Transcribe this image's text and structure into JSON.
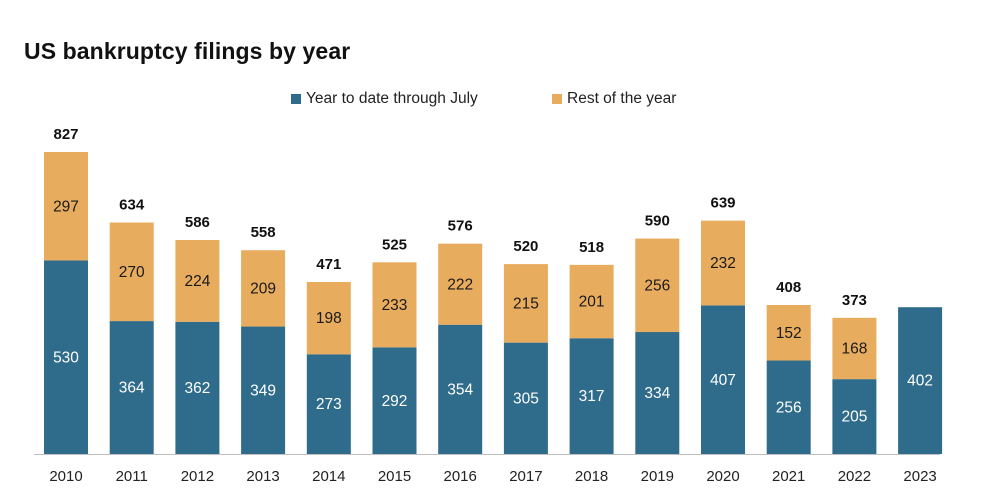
{
  "chart_data": {
    "type": "bar",
    "stacked": true,
    "title": "US bankruptcy filings by year",
    "xlabel": "",
    "ylabel": "",
    "ylim": [
      0,
      900
    ],
    "grid": false,
    "legend_position": "top-center",
    "categories": [
      "2010",
      "2011",
      "2012",
      "2013",
      "2014",
      "2015",
      "2016",
      "2017",
      "2018",
      "2019",
      "2020",
      "2021",
      "2022",
      "2023"
    ],
    "series": [
      {
        "name": "Year to date through July",
        "color": "#2F6B8A",
        "label_color": "#ffffff",
        "values": [
          530,
          364,
          362,
          349,
          273,
          292,
          354,
          305,
          317,
          334,
          407,
          256,
          205,
          402
        ]
      },
      {
        "name": "Rest of the year",
        "color": "#E8AC5E",
        "label_color": "#1a1a1a",
        "values": [
          297,
          270,
          224,
          209,
          198,
          233,
          222,
          215,
          201,
          256,
          232,
          152,
          168,
          null
        ]
      }
    ],
    "totals": [
      827,
      634,
      586,
      558,
      471,
      525,
      576,
      520,
      518,
      590,
      639,
      408,
      373,
      null
    ]
  }
}
